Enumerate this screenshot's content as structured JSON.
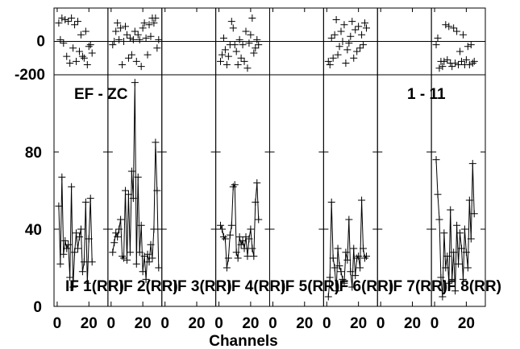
{
  "chart_data": {
    "type": "line",
    "title": "",
    "baseline_label": "EF - ZC",
    "source_label": "1 - 11",
    "xlabel": "Channels",
    "x_ticks": [
      0,
      20
    ],
    "xlim": [
      -2,
      32
    ],
    "phase_panel": {
      "y_ticks": [
        0,
        -200
      ],
      "ylim": [
        -200,
        200
      ],
      "grid_zero": true
    },
    "amp_panel": {
      "y_ticks": [
        0,
        40,
        80
      ],
      "ylim": [
        0,
        120
      ]
    },
    "panels": [
      {
        "label": "IF 1(RR)",
        "amp": [
          52,
          22,
          67,
          27,
          34,
          30,
          32,
          15,
          62,
          10,
          28,
          38,
          30,
          36,
          40,
          18,
          23,
          54,
          12,
          35,
          56,
          23
        ],
        "phase": [
          110,
          10,
          140,
          -10,
          130,
          -90,
          120,
          -130,
          140,
          -40,
          100,
          -120,
          120,
          -60,
          40,
          -90,
          -100,
          60,
          -140,
          -30,
          -20,
          -70
        ]
      },
      {
        "label": "IF 2(RR)",
        "amp": [
          28,
          33,
          38,
          36,
          40,
          45,
          26,
          25,
          60,
          24,
          58,
          28,
          70,
          56,
          116,
          22,
          67,
          28,
          42,
          18,
          26,
          14,
          27,
          23,
          32,
          25,
          40,
          85,
          60,
          20
        ],
        "phase": [
          -20,
          0,
          60,
          110,
          10,
          80,
          -140,
          0,
          90,
          40,
          -100,
          20,
          -80,
          10,
          60,
          -120,
          40,
          10,
          -150,
          80,
          110,
          20,
          -80,
          100,
          30,
          140,
          110,
          140,
          -40,
          10
        ]
      },
      {
        "label": "IF 3(RR)",
        "amp": [],
        "phase": []
      },
      {
        "label": "IF 4(RR)",
        "amp": [
          42,
          40,
          36,
          35,
          20,
          25,
          37,
          42,
          62,
          63,
          28,
          25,
          36,
          32,
          34,
          30,
          36,
          26,
          35,
          40,
          30,
          26,
          54,
          64,
          45
        ],
        "phase": [
          -120,
          -80,
          20,
          -50,
          -140,
          -90,
          -20,
          120,
          80,
          -20,
          -60,
          -140,
          10,
          -100,
          -20,
          -120,
          60,
          -160,
          -10,
          40,
          140,
          -70,
          -40,
          10,
          -20
        ]
      },
      {
        "label": "IF 5(RR)",
        "amp": [],
        "phase": []
      },
      {
        "label": "IF 6(RR)",
        "amp": [
          5,
          15,
          54,
          25,
          20,
          8,
          30,
          21,
          18,
          14,
          12,
          28,
          24,
          45,
          18,
          10,
          30,
          16,
          25,
          26,
          20,
          55,
          30,
          25,
          26
        ],
        "phase": [
          -120,
          -140,
          20,
          -100,
          40,
          130,
          -80,
          -30,
          60,
          0,
          100,
          -130,
          -50,
          -10,
          30,
          120,
          -100,
          70,
          -60,
          90,
          -40,
          40,
          -20,
          110,
          80
        ]
      },
      {
        "label": "IF 7(RR)",
        "amp": [],
        "phase": []
      },
      {
        "label": "IF 8(RR)",
        "amp": [
          76,
          58,
          45,
          15,
          5,
          38,
          20,
          26,
          12,
          50,
          14,
          28,
          8,
          42,
          22,
          38,
          30,
          14,
          40,
          28,
          20,
          55,
          35,
          74,
          48
        ],
        "phase": [
          -20,
          20,
          -160,
          -120,
          -150,
          -120,
          100,
          -110,
          90,
          -130,
          -150,
          80,
          -130,
          60,
          -140,
          -60,
          -120,
          40,
          -140,
          -110,
          -30,
          -140,
          -20,
          -130,
          -120
        ]
      }
    ]
  }
}
